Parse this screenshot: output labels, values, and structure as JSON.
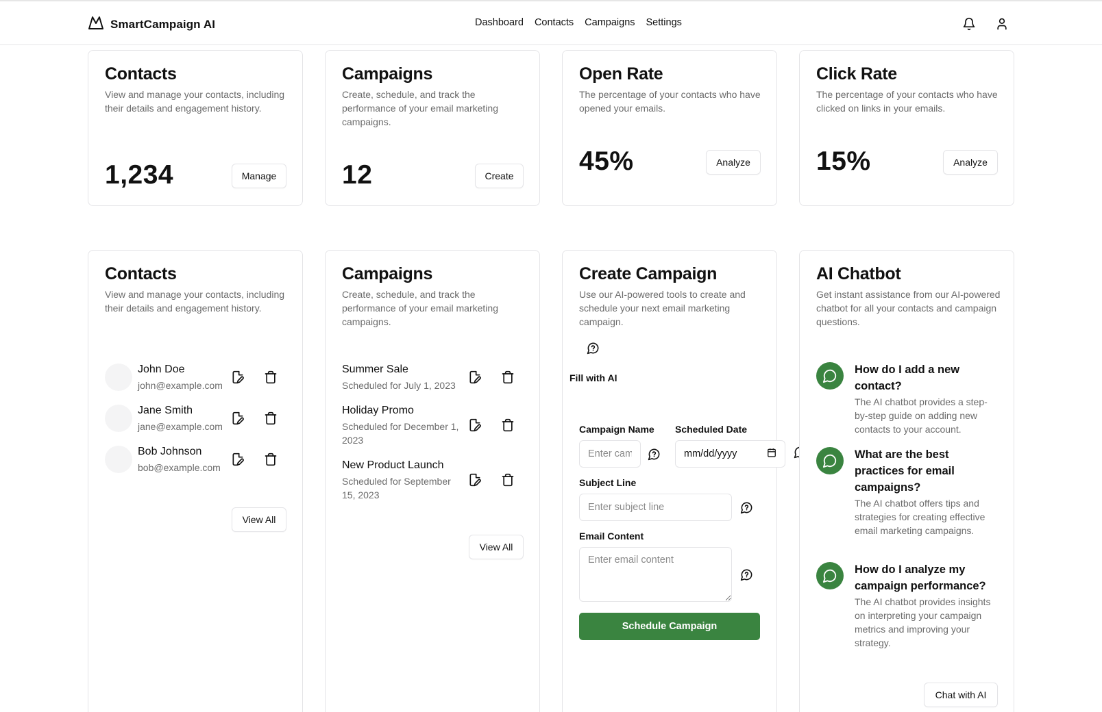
{
  "app": {
    "name": "SmartCampaign AI",
    "logo_icon": "mountain-icon"
  },
  "nav": [
    "Dashboard",
    "Contacts",
    "Campaigns",
    "Settings"
  ],
  "header_icons": [
    "bell-icon",
    "user-icon"
  ],
  "stats": {
    "contacts": {
      "title": "Contacts",
      "desc": "View and manage your contacts, including their details and engagement history.",
      "value": "1,234",
      "button": "Manage"
    },
    "campaigns": {
      "title": "Campaigns",
      "desc": "Create, schedule, and track the performance of your email marketing campaigns.",
      "value": "12",
      "button": "Create"
    },
    "open_rate": {
      "title": "Open Rate",
      "desc": "The percentage of your contacts who have opened your emails.",
      "value": "45%",
      "button": "Analyze"
    },
    "click_rate": {
      "title": "Click Rate",
      "desc": "The percentage of your contacts who have clicked on links in your emails.",
      "value": "15%",
      "button": "Analyze"
    }
  },
  "contacts_panel": {
    "title": "Contacts",
    "desc": "View and manage your contacts, including their details and engagement history.",
    "items": [
      {
        "name": "John Doe",
        "email": "john@example.com"
      },
      {
        "name": "Jane Smith",
        "email": "jane@example.com"
      },
      {
        "name": "Bob Johnson",
        "email": "bob@example.com"
      }
    ],
    "view_all": "View All"
  },
  "campaigns_panel": {
    "title": "Campaigns",
    "desc": "Create, schedule, and track the performance of your email marketing campaigns.",
    "items": [
      {
        "name": "Summer Sale",
        "schedule": "Scheduled for July 1, 2023"
      },
      {
        "name": "Holiday Promo",
        "schedule": "Scheduled for December 1, 2023"
      },
      {
        "name": "New Product Launch",
        "schedule": "Scheduled for September 15, 2023"
      }
    ],
    "view_all": "View All"
  },
  "create_campaign": {
    "title": "Create Campaign",
    "desc": "Use our AI-powered tools to create and schedule your next email marketing campaign.",
    "fill_ai": "Fill with AI",
    "name_label": "Campaign Name",
    "name_placeholder": "Enter campaign name",
    "date_label": "Scheduled Date",
    "date_placeholder": "mm/dd/yyyy",
    "subject_label": "Subject Line",
    "subject_placeholder": "Enter subject line",
    "content_label": "Email Content",
    "content_placeholder": "Enter email content",
    "submit": "Schedule Campaign"
  },
  "chatbot": {
    "title": "AI Chatbot",
    "desc": "Get instant assistance from our AI-powered chatbot for all your contacts and campaign questions.",
    "faqs": [
      {
        "q": "How do I add a new contact?",
        "a": "The AI chatbot provides a step-by-step guide on adding new contacts to your account."
      },
      {
        "q": "What are the best practices for email campaigns?",
        "a": "The AI chatbot offers tips and strategies for creating effective email marketing campaigns."
      },
      {
        "q": "How do I analyze my campaign performance?",
        "a": "The AI chatbot provides insights on interpreting your campaign metrics and improving your strategy."
      }
    ],
    "button": "Chat with AI"
  },
  "colors": {
    "accent": "#3a8440",
    "border": "#e4e4e7",
    "muted_text": "#6b6b6b"
  }
}
